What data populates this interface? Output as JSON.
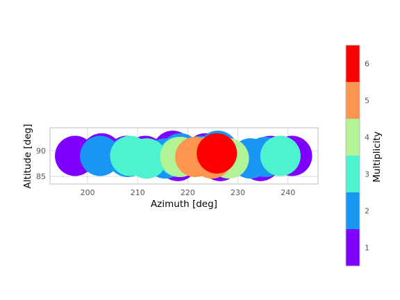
{
  "chart_data": {
    "type": "scatter",
    "xlabel": "Azimuth [deg]",
    "ylabel": "Altitude [deg]",
    "xlim": [
      192.5,
      246
    ],
    "ylim": [
      83.5,
      94.5
    ],
    "xticks": [
      200,
      210,
      220,
      230,
      240
    ],
    "yticks": [
      85,
      90
    ],
    "grid": true,
    "colorbar": {
      "label": "Multiplicity",
      "range": [
        0.5,
        6.5
      ],
      "ticks": [
        1,
        2,
        3,
        4,
        5,
        6
      ],
      "bins": [
        {
          "value": 1,
          "color": "#7f00ff"
        },
        {
          "value": 2,
          "color": "#1996f3"
        },
        {
          "value": 3,
          "color": "#4df3ce"
        },
        {
          "value": 4,
          "color": "#b2f396"
        },
        {
          "value": 5,
          "color": "#ff964f"
        },
        {
          "value": 6,
          "color": "#ff0000"
        }
      ]
    },
    "points": [
      {
        "az": 197.5,
        "alt": 89.0,
        "m": 1
      },
      {
        "az": 202.8,
        "alt": 89.5,
        "m": 1
      },
      {
        "az": 207.8,
        "alt": 89.0,
        "m": 1
      },
      {
        "az": 211.5,
        "alt": 89.0,
        "m": 1
      },
      {
        "az": 217.0,
        "alt": 90.0,
        "m": 1
      },
      {
        "az": 218.0,
        "alt": 88.0,
        "m": 1
      },
      {
        "az": 223.5,
        "alt": 89.5,
        "m": 1
      },
      {
        "az": 226.5,
        "alt": 88.0,
        "m": 1
      },
      {
        "az": 234.5,
        "alt": 88.0,
        "m": 1
      },
      {
        "az": 236.5,
        "alt": 89.0,
        "m": 1
      },
      {
        "az": 240.8,
        "alt": 89.0,
        "m": 1
      },
      {
        "az": 202.5,
        "alt": 89.0,
        "m": 2
      },
      {
        "az": 208.0,
        "alt": 88.8,
        "m": 2
      },
      {
        "az": 215.5,
        "alt": 88.5,
        "m": 2
      },
      {
        "az": 218.5,
        "alt": 89.5,
        "m": 2
      },
      {
        "az": 222.5,
        "alt": 89.0,
        "m": 2
      },
      {
        "az": 226.0,
        "alt": 90.0,
        "m": 2
      },
      {
        "az": 232.5,
        "alt": 88.5,
        "m": 2
      },
      {
        "az": 235.5,
        "alt": 88.8,
        "m": 2
      },
      {
        "az": 208.5,
        "alt": 89.0,
        "m": 3
      },
      {
        "az": 211.8,
        "alt": 88.5,
        "m": 3
      },
      {
        "az": 218.2,
        "alt": 88.8,
        "m": 3
      },
      {
        "az": 226.5,
        "alt": 89.0,
        "m": 3
      },
      {
        "az": 238.5,
        "alt": 89.0,
        "m": 3
      },
      {
        "az": 218.5,
        "alt": 88.8,
        "m": 4
      },
      {
        "az": 224.0,
        "alt": 88.8,
        "m": 4
      },
      {
        "az": 228.2,
        "alt": 88.5,
        "m": 4
      },
      {
        "az": 221.5,
        "alt": 88.8,
        "m": 5
      },
      {
        "az": 224.8,
        "alt": 88.5,
        "m": 5
      },
      {
        "az": 225.8,
        "alt": 89.5,
        "m": 6
      }
    ]
  }
}
